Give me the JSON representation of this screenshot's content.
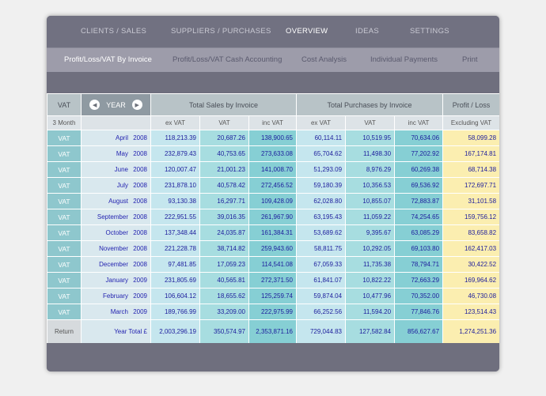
{
  "topnav": [
    {
      "label": "CLIENTS / SALES",
      "active": false
    },
    {
      "label": "SUPPLIERS / PURCHASES",
      "active": false
    },
    {
      "label": "OVERVIEW",
      "active": true
    },
    {
      "label": "IDEAS",
      "active": false
    },
    {
      "label": "SETTINGS",
      "active": false
    }
  ],
  "subnav": [
    {
      "label": "Profit/Loss/VAT By Invoice",
      "active": true
    },
    {
      "label": "Profit/Loss/VAT Cash Accounting",
      "active": false
    },
    {
      "label": "Cost Analysis",
      "active": false
    },
    {
      "label": "Individual Payments",
      "active": false
    },
    {
      "label": "Print",
      "active": false
    }
  ],
  "table": {
    "header1": {
      "vat": "VAT",
      "year": "YEAR",
      "sales": "Total Sales by Invoice",
      "purchases": "Total Purchases by Invoice",
      "profit": "Profit / Loss"
    },
    "header2": {
      "period": "3 Month",
      "sales_ex": "ex VAT",
      "sales_vat": "VAT",
      "sales_inc": "inc VAT",
      "pur_ex": "ex VAT",
      "pur_vat": "VAT",
      "pur_inc": "inc VAT",
      "profit": "Excluding VAT"
    },
    "rows": [
      {
        "vat": "VAT",
        "month": "April",
        "year": "2008",
        "sales_ex": "118,213.39",
        "sales_vat": "20,687.26",
        "sales_inc": "138,900.65",
        "pur_ex": "60,114.11",
        "pur_vat": "10,519.95",
        "pur_inc": "70,634.06",
        "profit": "58,099.28"
      },
      {
        "vat": "VAT",
        "month": "May",
        "year": "2008",
        "sales_ex": "232,879.43",
        "sales_vat": "40,753.65",
        "sales_inc": "273,633.08",
        "pur_ex": "65,704.62",
        "pur_vat": "11,498.30",
        "pur_inc": "77,202.92",
        "profit": "167,174.81"
      },
      {
        "vat": "VAT",
        "month": "June",
        "year": "2008",
        "sales_ex": "120,007.47",
        "sales_vat": "21,001.23",
        "sales_inc": "141,008.70",
        "pur_ex": "51,293.09",
        "pur_vat": "8,976.29",
        "pur_inc": "60,269.38",
        "profit": "68,714.38"
      },
      {
        "vat": "VAT",
        "month": "July",
        "year": "2008",
        "sales_ex": "231,878.10",
        "sales_vat": "40,578.42",
        "sales_inc": "272,456.52",
        "pur_ex": "59,180.39",
        "pur_vat": "10,356.53",
        "pur_inc": "69,536.92",
        "profit": "172,697.71"
      },
      {
        "vat": "VAT",
        "month": "August",
        "year": "2008",
        "sales_ex": "93,130.38",
        "sales_vat": "16,297.71",
        "sales_inc": "109,428.09",
        "pur_ex": "62,028.80",
        "pur_vat": "10,855.07",
        "pur_inc": "72,883.87",
        "profit": "31,101.58"
      },
      {
        "vat": "VAT",
        "month": "September",
        "year": "2008",
        "sales_ex": "222,951.55",
        "sales_vat": "39,016.35",
        "sales_inc": "261,967.90",
        "pur_ex": "63,195.43",
        "pur_vat": "11,059.22",
        "pur_inc": "74,254.65",
        "profit": "159,756.12"
      },
      {
        "vat": "VAT",
        "month": "October",
        "year": "2008",
        "sales_ex": "137,348.44",
        "sales_vat": "24,035.87",
        "sales_inc": "161,384.31",
        "pur_ex": "53,689.62",
        "pur_vat": "9,395.67",
        "pur_inc": "63,085.29",
        "profit": "83,658.82"
      },
      {
        "vat": "VAT",
        "month": "November",
        "year": "2008",
        "sales_ex": "221,228.78",
        "sales_vat": "38,714.82",
        "sales_inc": "259,943.60",
        "pur_ex": "58,811.75",
        "pur_vat": "10,292.05",
        "pur_inc": "69,103.80",
        "profit": "162,417.03"
      },
      {
        "vat": "VAT",
        "month": "December",
        "year": "2008",
        "sales_ex": "97,481.85",
        "sales_vat": "17,059.23",
        "sales_inc": "114,541.08",
        "pur_ex": "67,059.33",
        "pur_vat": "11,735.38",
        "pur_inc": "78,794.71",
        "profit": "30,422.52"
      },
      {
        "vat": "VAT",
        "month": "January",
        "year": "2009",
        "sales_ex": "231,805.69",
        "sales_vat": "40,565.81",
        "sales_inc": "272,371.50",
        "pur_ex": "61,841.07",
        "pur_vat": "10,822.22",
        "pur_inc": "72,663.29",
        "profit": "169,964.62"
      },
      {
        "vat": "VAT",
        "month": "February",
        "year": "2009",
        "sales_ex": "106,604.12",
        "sales_vat": "18,655.62",
        "sales_inc": "125,259.74",
        "pur_ex": "59,874.04",
        "pur_vat": "10,477.96",
        "pur_inc": "70,352.00",
        "profit": "46,730.08"
      },
      {
        "vat": "VAT",
        "month": "March",
        "year": "2009",
        "sales_ex": "189,766.99",
        "sales_vat": "33,209.00",
        "sales_inc": "222,975.99",
        "pur_ex": "66,252.56",
        "pur_vat": "11,594.20",
        "pur_inc": "77,846.76",
        "profit": "123,514.43"
      }
    ],
    "total": {
      "label": "Return",
      "year_total": "Year Total  £",
      "sales_ex": "2,003,296.19",
      "sales_vat": "350,574.97",
      "sales_inc": "2,353,871.16",
      "pur_ex": "729,044.83",
      "pur_vat": "127,582.84",
      "pur_inc": "856,627.67",
      "profit": "1,274,251.36"
    }
  },
  "icons": {
    "prev": "chevron-left-icon",
    "next": "chevron-right-icon"
  },
  "colors": {
    "window_bg": "#6f6f7e",
    "subnav_bg": "#9d9caa",
    "vat_teal": "#8ec7cd",
    "profit_yellow": "#fbeeb0",
    "value_text": "#1c1c9c"
  }
}
